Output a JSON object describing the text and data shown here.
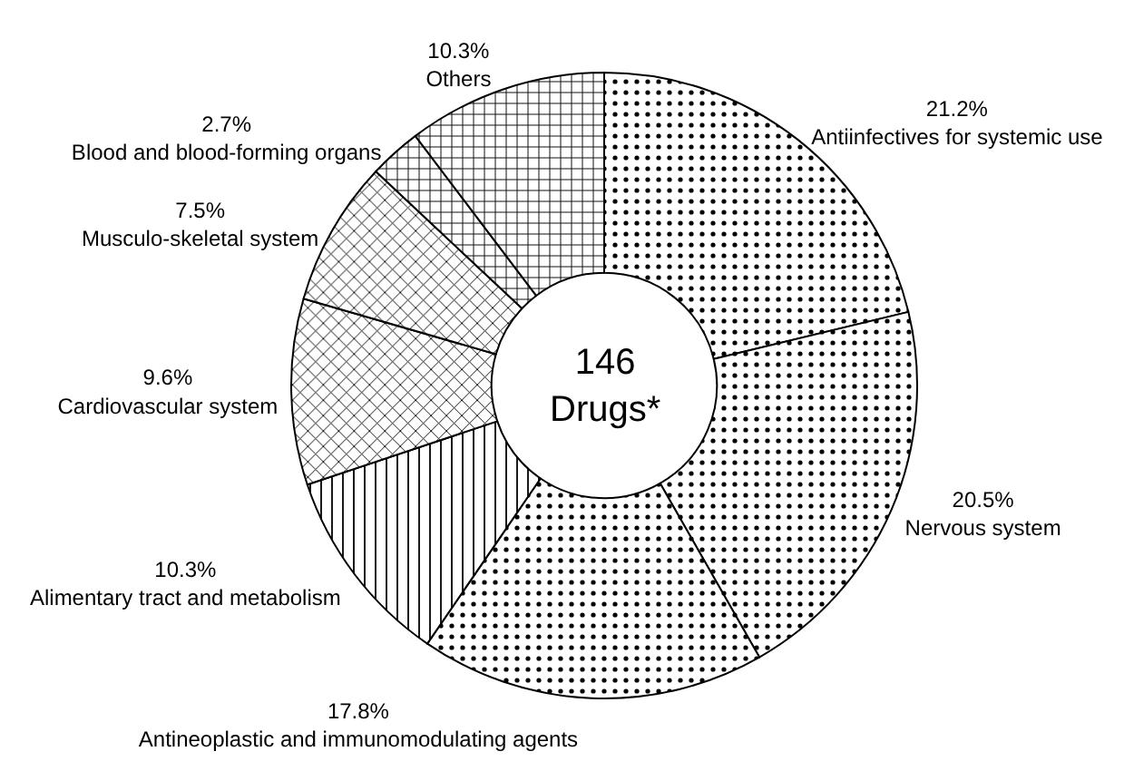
{
  "chart_data": {
    "type": "donut",
    "categories": [
      "Antiinfectives for systemic use",
      "Nervous system",
      "Antineoplastic and immunomodulating agents",
      "Alimentary tract and metabolism",
      "Cardiovascular system",
      "Musculo-skeletal system",
      "Blood and blood-forming organs",
      "Others"
    ],
    "values": [
      21.2,
      20.5,
      17.8,
      10.3,
      9.6,
      7.5,
      2.7,
      10.3
    ],
    "value_labels": [
      "21.2%",
      "20.5%",
      "17.8%",
      "10.3%",
      "9.6%",
      "7.5%",
      "2.7%",
      "10.3%"
    ],
    "colors": [
      "#000000",
      "#000000",
      "#000000",
      "#000000",
      "#000000",
      "#000000",
      "#000000",
      "#000000"
    ],
    "annotations": [
      "146 Drugs*"
    ]
  }
}
